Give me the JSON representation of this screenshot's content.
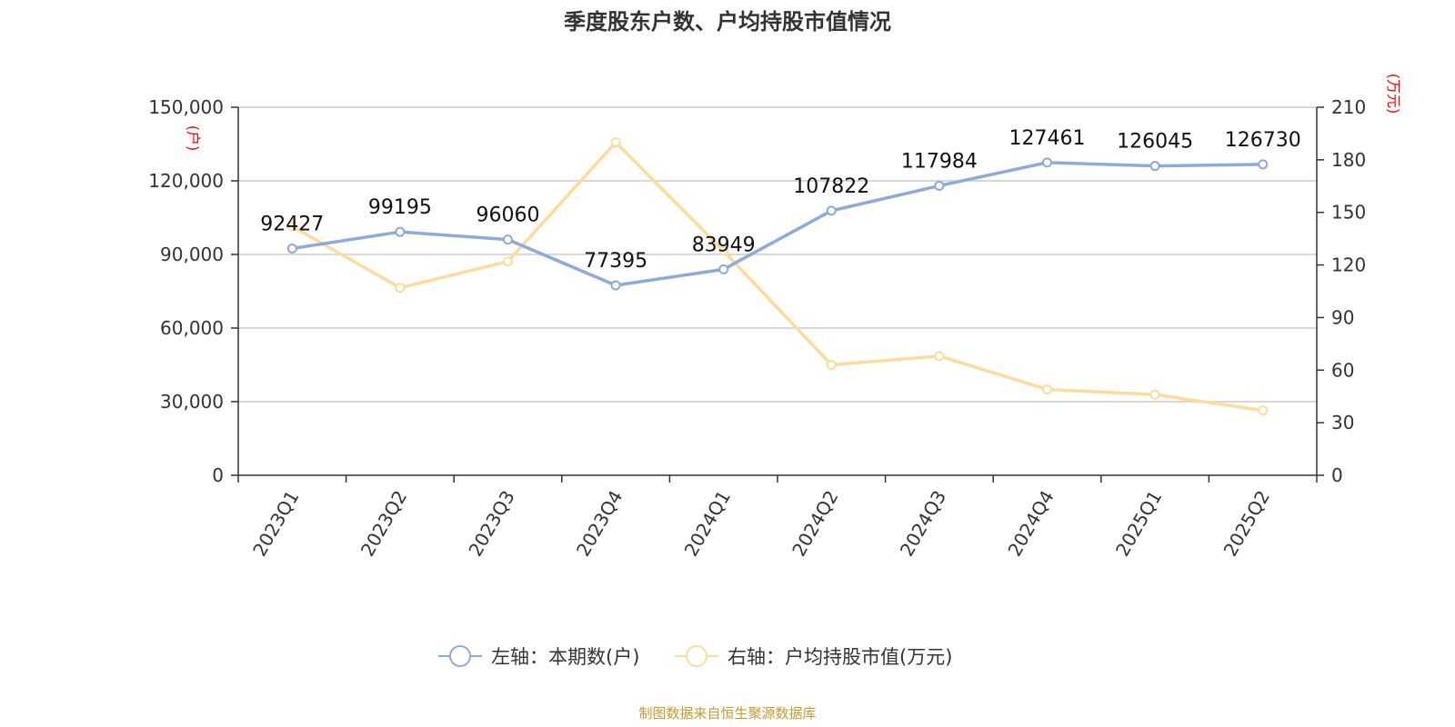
{
  "chart_data": {
    "type": "line",
    "title": "季度股东户数、户均持股市值情况",
    "categories": [
      "2023Q1",
      "2023Q2",
      "2023Q3",
      "2023Q4",
      "2024Q1",
      "2024Q2",
      "2024Q3",
      "2024Q4",
      "2025Q1",
      "2025Q2"
    ],
    "left_axis": {
      "unit": "(户)",
      "ticks": [
        "0",
        "30,000",
        "60,000",
        "90,000",
        "120,000",
        "150,000"
      ],
      "range": [
        0,
        150000
      ]
    },
    "right_axis": {
      "unit": "(万元)",
      "ticks": [
        "0",
        "30",
        "60",
        "90",
        "120",
        "150",
        "180",
        "210"
      ],
      "range": [
        0,
        210
      ]
    },
    "series": [
      {
        "name": "左轴：本期数(户)",
        "axis": "left",
        "color": "#8eaadb",
        "values": [
          92427,
          99195,
          96060,
          77395,
          83949,
          107822,
          117984,
          127461,
          126045,
          126730
        ],
        "labels": [
          "92427",
          "99195",
          "96060",
          "77395",
          "83949",
          "107822",
          "117984",
          "127461",
          "126045",
          "126730"
        ]
      },
      {
        "name": "右轴：户均持股市值(万元)",
        "axis": "right",
        "color": "#fddc9b",
        "values": [
          142,
          107,
          122,
          190,
          128,
          63,
          68,
          49,
          46,
          37
        ]
      }
    ],
    "grid": true,
    "legend_position": "bottom",
    "source": "制图数据来自恒生聚源数据库",
    "unit_color": "#ff0000",
    "source_color": "#c79a2e"
  }
}
